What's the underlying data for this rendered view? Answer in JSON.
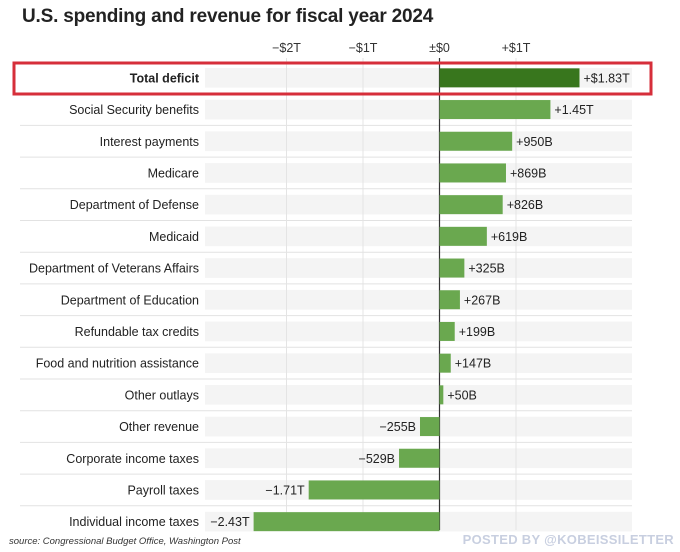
{
  "chart_data": {
    "type": "bar",
    "orientation": "horizontal",
    "title": "U.S. spending and revenue for fiscal year 2024",
    "source": "source: Congressional Budget Office, Washington Post",
    "watermark": "POSTED BY @KOBEISSILETTER",
    "units": "trillions of USD",
    "xlim": [
      -2.5,
      1.9
    ],
    "ticks": [
      {
        "value": -2,
        "label": "−$2T"
      },
      {
        "value": -1,
        "label": "−$1T"
      },
      {
        "value": 0,
        "label": "±$0"
      },
      {
        "value": 1,
        "label": "+$1T"
      }
    ],
    "grid": true,
    "highlight_color": "#d62e3a",
    "bar_color": "#6aa84f",
    "highlight_bar_color": "#38761d",
    "categories": [
      "Total deficit",
      "Social Security benefits",
      "Interest payments",
      "Medicare",
      "Department of Defense",
      "Medicaid",
      "Department of Veterans Affairs",
      "Department of Education",
      "Refundable tax credits",
      "Food and nutrition assistance",
      "Other outlays",
      "Other revenue",
      "Corporate income taxes",
      "Payroll taxes",
      "Individual income taxes"
    ],
    "values": [
      1.83,
      1.45,
      0.95,
      0.869,
      0.826,
      0.619,
      0.325,
      0.267,
      0.199,
      0.147,
      0.05,
      -0.255,
      -0.529,
      -1.71,
      -2.43
    ],
    "data_labels": [
      "+$1.83T",
      "+1.45T",
      "+950B",
      "+869B",
      "+826B",
      "+619B",
      "+325B",
      "+267B",
      "+199B",
      "+147B",
      "+50B",
      "−255B",
      "−529B",
      "−1.71T",
      "−2.43T"
    ]
  }
}
